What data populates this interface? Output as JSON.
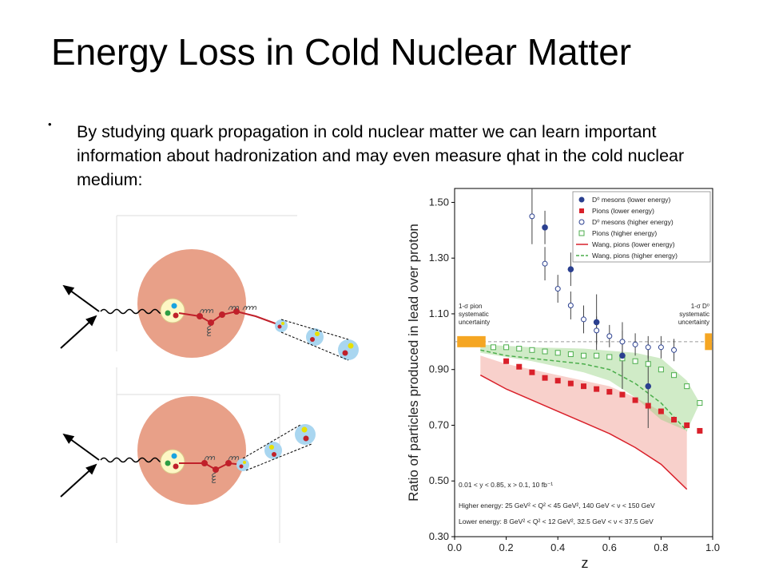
{
  "slide": {
    "title": "Energy Loss in Cold Nuclear Matter",
    "bullet": "•",
    "text": "By studying quark propagation in cold nuclear matter we can learn important information about hadronization and may even measure qhat in the cold nuclear medium:"
  },
  "colors": {
    "nucleus": "#e8a088",
    "d0_filled": "#2a3f8f",
    "pions_filled": "#d9202a",
    "wang_lower": "#d9202a",
    "wang_higher": "#4cae4c",
    "systematic_band": "#f5a623"
  },
  "chart_data": {
    "type": "scatter",
    "xlabel": "z",
    "ylabel": "Ratio of particles produced in lead over proton",
    "xlim": [
      0.0,
      1.0
    ],
    "ylim": [
      0.3,
      1.55
    ],
    "x_ticks": [
      "0.0",
      "0.2",
      "0.4",
      "0.6",
      "0.8",
      "1.0"
    ],
    "y_ticks": [
      "0.30",
      "0.50",
      "0.70",
      "0.90",
      "1.10",
      "1.30",
      "1.50"
    ],
    "legend_position": "top-right",
    "legend": [
      "D⁰ mesons (lower energy)",
      "Pions (lower energy)",
      "D⁰ mesons (higher energy)",
      "Pions (higher energy)",
      "Wang, pions (lower energy)",
      "Wang, pions (higher energy)"
    ],
    "series": [
      {
        "name": "D⁰ mesons (lower energy)",
        "marker": "filled-circle",
        "x": [
          0.35,
          0.45,
          0.55,
          0.65,
          0.75
        ],
        "y": [
          1.41,
          1.26,
          1.07,
          0.95,
          0.84
        ],
        "err": [
          0.06,
          0.06,
          0.1,
          0.12,
          0.15
        ]
      },
      {
        "name": "Pions (lower energy)",
        "marker": "filled-square",
        "x": [
          0.2,
          0.25,
          0.3,
          0.35,
          0.4,
          0.45,
          0.5,
          0.55,
          0.6,
          0.65,
          0.7,
          0.75,
          0.8,
          0.85,
          0.9,
          0.95
        ],
        "y": [
          0.93,
          0.91,
          0.89,
          0.87,
          0.86,
          0.85,
          0.84,
          0.83,
          0.82,
          0.81,
          0.79,
          0.77,
          0.75,
          0.72,
          0.7,
          0.68
        ]
      },
      {
        "name": "D⁰ mesons (higher energy)",
        "marker": "open-circle",
        "x": [
          0.3,
          0.35,
          0.4,
          0.45,
          0.5,
          0.55,
          0.6,
          0.65,
          0.7,
          0.75,
          0.8,
          0.85
        ],
        "y": [
          1.45,
          1.28,
          1.19,
          1.13,
          1.08,
          1.04,
          1.02,
          1.0,
          0.99,
          0.98,
          0.98,
          0.97
        ],
        "err": [
          0.1,
          0.06,
          0.05,
          0.05,
          0.05,
          0.05,
          0.04,
          0.04,
          0.04,
          0.04,
          0.04,
          0.04
        ]
      },
      {
        "name": "Pions (higher energy)",
        "marker": "open-square",
        "x": [
          0.15,
          0.2,
          0.25,
          0.3,
          0.35,
          0.4,
          0.45,
          0.5,
          0.55,
          0.6,
          0.65,
          0.7,
          0.75,
          0.8,
          0.85,
          0.9,
          0.95
        ],
        "y": [
          0.98,
          0.98,
          0.975,
          0.97,
          0.965,
          0.96,
          0.955,
          0.95,
          0.95,
          0.945,
          0.94,
          0.93,
          0.92,
          0.9,
          0.88,
          0.84,
          0.78
        ]
      },
      {
        "name": "Wang, pions (lower energy)",
        "marker": "line",
        "x": [
          0.1,
          0.2,
          0.3,
          0.4,
          0.5,
          0.6,
          0.7,
          0.8,
          0.9
        ],
        "y": [
          0.88,
          0.83,
          0.79,
          0.75,
          0.71,
          0.67,
          0.62,
          0.56,
          0.47
        ]
      },
      {
        "name": "Wang, pions (higher energy)",
        "marker": "dashed-line",
        "x": [
          0.1,
          0.2,
          0.3,
          0.4,
          0.5,
          0.6,
          0.7,
          0.8,
          0.9
        ],
        "y": [
          0.97,
          0.95,
          0.94,
          0.93,
          0.92,
          0.9,
          0.85,
          0.78,
          0.68
        ]
      }
    ],
    "bands": [
      {
        "name": "Wang, pions (lower energy)",
        "upper": [
          [
            0.1,
            0.95
          ],
          [
            0.2,
            0.92
          ],
          [
            0.4,
            0.88
          ],
          [
            0.6,
            0.84
          ],
          [
            0.7,
            0.8
          ],
          [
            0.8,
            0.75
          ],
          [
            0.9,
            0.68
          ]
        ],
        "lower": [
          [
            0.1,
            0.88
          ],
          [
            0.2,
            0.83
          ],
          [
            0.4,
            0.75
          ],
          [
            0.6,
            0.67
          ],
          [
            0.7,
            0.62
          ],
          [
            0.8,
            0.56
          ],
          [
            0.9,
            0.47
          ]
        ]
      },
      {
        "name": "Wang, pions (higher energy)",
        "upper": [
          [
            0.1,
            0.99
          ],
          [
            0.3,
            0.98
          ],
          [
            0.5,
            0.975
          ],
          [
            0.7,
            0.96
          ],
          [
            0.8,
            0.94
          ],
          [
            0.9,
            0.86
          ],
          [
            0.95,
            0.78
          ]
        ],
        "lower": [
          [
            0.1,
            0.96
          ],
          [
            0.3,
            0.93
          ],
          [
            0.5,
            0.89
          ],
          [
            0.6,
            0.86
          ],
          [
            0.7,
            0.8
          ],
          [
            0.8,
            0.72
          ],
          [
            0.9,
            0.68
          ]
        ]
      }
    ],
    "annotations": [
      "1-σ pion",
      "systematic",
      "uncertainty",
      "1-σ D⁰",
      "systematic",
      "uncertainty",
      "0.01 < y < 0.85, x > 0.1, 10 fb⁻¹",
      "Higher energy: 25 GeV² < Q² < 45 GeV², 140 GeV < ν < 150 GeV",
      "Lower energy: 8 GeV² < Q² < 12 GeV², 32.5 GeV < ν < 37.5 GeV"
    ]
  }
}
